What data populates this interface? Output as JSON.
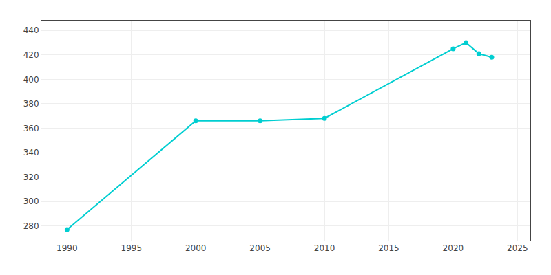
{
  "chart_data": {
    "type": "line",
    "x": [
      1990,
      2000,
      2005,
      2010,
      2020,
      2021,
      2022,
      2023
    ],
    "values": [
      277,
      366,
      366,
      368,
      425,
      430,
      421,
      418
    ],
    "color": "#00CED1",
    "marker": "circle",
    "xlim": [
      1988,
      2026
    ],
    "ylim": [
      268,
      448
    ],
    "xticks": [
      1990,
      1995,
      2000,
      2005,
      2010,
      2015,
      2020,
      2025
    ],
    "yticks": [
      280,
      300,
      320,
      340,
      360,
      380,
      400,
      420,
      440
    ],
    "grid": true
  }
}
